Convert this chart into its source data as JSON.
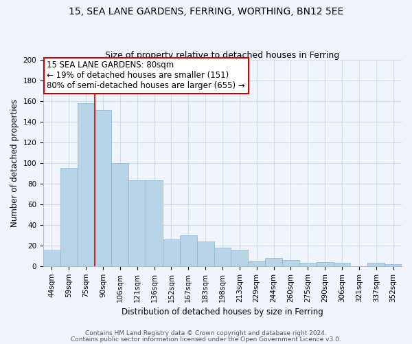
{
  "title": "15, SEA LANE GARDENS, FERRING, WORTHING, BN12 5EE",
  "subtitle": "Size of property relative to detached houses in Ferring",
  "xlabel": "Distribution of detached houses by size in Ferring",
  "ylabel": "Number of detached properties",
  "bar_labels": [
    "44sqm",
    "59sqm",
    "75sqm",
    "90sqm",
    "106sqm",
    "121sqm",
    "136sqm",
    "152sqm",
    "167sqm",
    "183sqm",
    "198sqm",
    "213sqm",
    "229sqm",
    "244sqm",
    "260sqm",
    "275sqm",
    "290sqm",
    "306sqm",
    "321sqm",
    "337sqm",
    "352sqm"
  ],
  "bar_values": [
    15,
    95,
    158,
    151,
    100,
    83,
    83,
    26,
    30,
    24,
    18,
    16,
    5,
    8,
    6,
    3,
    4,
    3,
    0,
    3,
    2
  ],
  "bar_color": "#b8d4e8",
  "bar_edge_color": "#8ab4d4",
  "vline_color": "#cc0000",
  "vline_x": 2.5,
  "annotation_line1": "15 SEA LANE GARDENS: 80sqm",
  "annotation_line2": "← 19% of detached houses are smaller (151)",
  "annotation_line3": "80% of semi-detached houses are larger (655) →",
  "annotation_box_edge": "#cc0000",
  "ylim": [
    0,
    200
  ],
  "yticks": [
    0,
    20,
    40,
    60,
    80,
    100,
    120,
    140,
    160,
    180,
    200
  ],
  "footer1": "Contains HM Land Registry data © Crown copyright and database right 2024.",
  "footer2": "Contains public sector information licensed under the Open Government Licence v3.0.",
  "grid_color": "#d0dce8",
  "bg_color": "#f0f4fc",
  "title_fontsize": 10,
  "subtitle_fontsize": 9,
  "axis_label_fontsize": 8.5,
  "tick_fontsize": 7.5,
  "annotation_fontsize": 8.5,
  "footer_fontsize": 6.5
}
